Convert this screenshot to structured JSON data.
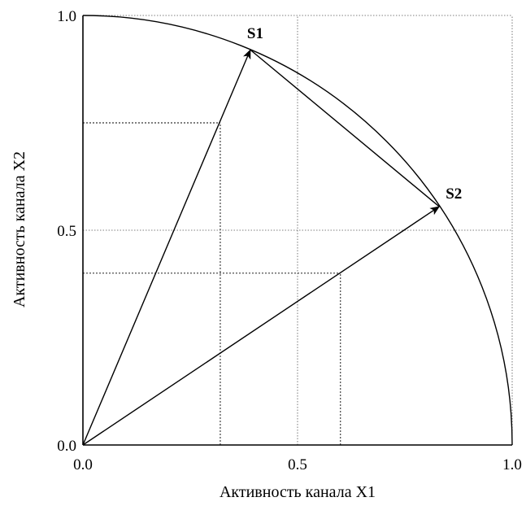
{
  "chart_data": {
    "type": "scatter",
    "xlabel": "Активность канала X1",
    "ylabel": "Активность канала X2",
    "xlim": [
      0,
      1
    ],
    "ylim": [
      0,
      1
    ],
    "x_ticks": [
      "0.0",
      "0.5",
      "1.0"
    ],
    "y_ticks": [
      "0.0",
      "0.5",
      "1.0"
    ],
    "grid": true,
    "unit_circle_arc": true,
    "vectors_from_origin": true,
    "points": [
      {
        "label": "S1",
        "x": 0.39,
        "y": 0.92,
        "guide": {
          "x": 0.32,
          "y": 0.75
        }
      },
      {
        "label": "S2",
        "x": 0.83,
        "y": 0.555,
        "guide": {
          "x": 0.6,
          "y": 0.4
        }
      }
    ],
    "chord_between_points": true
  }
}
